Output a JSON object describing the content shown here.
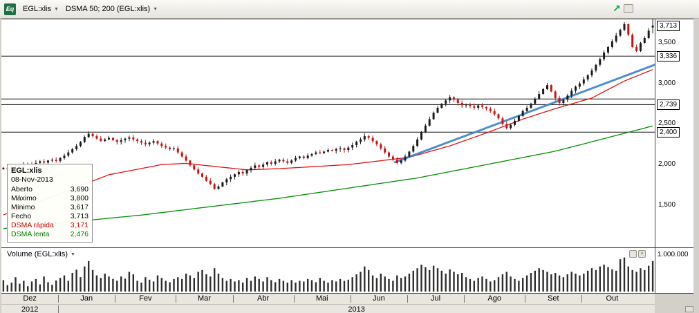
{
  "toolbar": {
    "logo_text": "Eq",
    "symbol": "EGL:xlis",
    "indicator": "DSMA 50; 200 (EGL:xlis)",
    "caret": "▼"
  },
  "chart_icons": {
    "trend_arrow": "↗"
  },
  "icons": {
    "close": "×"
  },
  "tooltip": {
    "title": "EGL:xlis",
    "date": "08-Nov-2013",
    "rows": [
      {
        "label": "Aberto",
        "value": "3,690",
        "color": "#000000"
      },
      {
        "label": "Máximo",
        "value": "3,800",
        "color": "#000000"
      },
      {
        "label": "Mínimo",
        "value": "3,617",
        "color": "#000000"
      },
      {
        "label": "Fecho",
        "value": "3,713",
        "color": "#000000"
      },
      {
        "label": "DSMA rápida",
        "value": "3,171",
        "color": "#cc0000"
      },
      {
        "label": "DSMA lenta",
        "value": "2,476",
        "color": "#007700"
      }
    ]
  },
  "volume_pane": {
    "label": "Volume (EGL:xlis)",
    "caret": "▼",
    "axis_max_label": "1.000.000"
  },
  "y_axis": {
    "ticks": [
      {
        "value": 3713,
        "label": "3,713",
        "boxed": true
      },
      {
        "value": 3500,
        "label": "3,500",
        "boxed": false
      },
      {
        "value": 3336,
        "label": "3,336",
        "boxed": true
      },
      {
        "value": 3000,
        "label": "3,000",
        "boxed": false
      },
      {
        "value": 2739,
        "label": "2,739",
        "boxed": true
      },
      {
        "value": 2500,
        "label": "2,500",
        "boxed": false
      },
      {
        "value": 2400,
        "label": "2,400",
        "boxed": true
      },
      {
        "value": 2000,
        "label": "2,000",
        "boxed": false
      },
      {
        "value": 1500,
        "label": "1,500",
        "boxed": false
      }
    ]
  },
  "x_axis": {
    "months": [
      {
        "label": "Dez",
        "start": 0
      },
      {
        "label": "Jan",
        "start": 14
      },
      {
        "label": "Fev",
        "start": 28
      },
      {
        "label": "Mar",
        "start": 43
      },
      {
        "label": "Abr",
        "start": 57
      },
      {
        "label": "Mai",
        "start": 72
      },
      {
        "label": "Jun",
        "start": 86
      },
      {
        "label": "Jul",
        "start": 100
      },
      {
        "label": "Ago",
        "start": 114
      },
      {
        "label": "Set",
        "start": 129
      },
      {
        "label": "Out",
        "start": 143
      }
    ],
    "years": [
      {
        "label": "2012",
        "start": 0,
        "end": 14
      },
      {
        "label": "2013",
        "start": 14,
        "end": 161
      }
    ]
  },
  "chart_data": {
    "type": "candlestick",
    "symbol": "EGL:xlis",
    "price_display": "values shown in thousandths with comma (3,713 = 3.713)",
    "price_range": [
      980,
      3790
    ],
    "closes": [
      1960,
      1950,
      1975,
      1990,
      1970,
      2000,
      2010,
      1995,
      2020,
      2040,
      2025,
      2050,
      2060,
      2045,
      2080,
      2110,
      2150,
      2190,
      2230,
      2280,
      2340,
      2380,
      2350,
      2320,
      2290,
      2310,
      2330,
      2300,
      2280,
      2300,
      2320,
      2335,
      2310,
      2290,
      2270,
      2250,
      2270,
      2290,
      2260,
      2230,
      2210,
      2190,
      2200,
      2150,
      2100,
      2050,
      1990,
      1940,
      1890,
      1850,
      1800,
      1760,
      1700,
      1730,
      1780,
      1820,
      1850,
      1880,
      1910,
      1890,
      1930,
      1960,
      1990,
      1970,
      2000,
      2030,
      2010,
      2040,
      2060,
      2040,
      2020,
      2050,
      2080,
      2100,
      2080,
      2110,
      2130,
      2150,
      2140,
      2160,
      2180,
      2170,
      2190,
      2200,
      2180,
      2210,
      2240,
      2280,
      2310,
      2350,
      2330,
      2290,
      2250,
      2200,
      2150,
      2100,
      2060,
      2020,
      2050,
      2100,
      2160,
      2230,
      2310,
      2400,
      2480,
      2560,
      2640,
      2700,
      2750,
      2790,
      2830,
      2800,
      2760,
      2730,
      2740,
      2720,
      2700,
      2730,
      2710,
      2690,
      2660,
      2620,
      2570,
      2500,
      2450,
      2490,
      2540,
      2600,
      2660,
      2700,
      2750,
      2810,
      2870,
      2930,
      2980,
      2900,
      2820,
      2760,
      2800,
      2850,
      2910,
      2960,
      3000,
      3050,
      3100,
      3160,
      3230,
      3300,
      3380,
      3450,
      3520,
      3590,
      3660,
      3730,
      3600,
      3450,
      3400,
      3500,
      3560,
      3650,
      3713
    ],
    "last_candle": {
      "open": 3690,
      "high": 3800,
      "low": 3617,
      "close": 3713
    },
    "volumes_thousands": [
      320,
      180,
      250,
      400,
      220,
      300,
      150,
      280,
      350,
      200,
      420,
      260,
      190,
      310,
      380,
      450,
      300,
      520,
      610,
      400,
      700,
      850,
      600,
      450,
      380,
      500,
      420,
      350,
      300,
      420,
      360,
      550,
      480,
      300,
      250,
      400,
      330,
      280,
      450,
      380,
      300,
      260,
      350,
      400,
      350,
      500,
      450,
      380,
      550,
      600,
      480,
      420,
      650,
      500,
      380,
      300,
      350,
      280,
      320,
      250,
      380,
      300,
      420,
      350,
      280,
      400,
      320,
      260,
      350,
      300,
      250,
      320,
      250,
      300,
      280,
      350,
      320,
      260,
      380,
      300,
      250,
      320,
      280,
      350,
      300,
      330,
      400,
      480,
      550,
      700,
      600,
      450,
      380,
      500,
      420,
      350,
      300,
      450,
      380,
      420,
      500,
      580,
      650,
      750,
      680,
      600,
      720,
      650,
      580,
      500,
      620,
      550,
      480,
      520,
      400,
      350,
      300,
      380,
      420,
      350,
      280,
      320,
      400,
      480,
      550,
      420,
      350,
      300,
      380,
      450,
      520,
      580,
      650,
      600,
      550,
      480,
      520,
      450,
      400,
      480,
      550,
      500,
      450,
      500,
      580,
      650,
      600,
      700,
      750,
      680,
      620,
      580,
      900,
      950,
      700,
      600,
      550,
      650,
      600,
      720,
      850
    ],
    "volume_axis_max": 1000000,
    "level_lines": [
      3336,
      2808,
      2739,
      2400
    ],
    "sma_fast": {
      "name": "DSMA rápida (50)",
      "color": "#e01010",
      "points": [
        [
          0,
          1380
        ],
        [
          17,
          1700
        ],
        [
          26,
          1875
        ],
        [
          39,
          2000
        ],
        [
          45,
          2015
        ],
        [
          60,
          1935
        ],
        [
          68,
          1950
        ],
        [
          85,
          2000
        ],
        [
          100,
          2090
        ],
        [
          110,
          2230
        ],
        [
          119,
          2390
        ],
        [
          128,
          2560
        ],
        [
          136,
          2690
        ],
        [
          145,
          2820
        ],
        [
          153,
          3030
        ],
        [
          160,
          3171
        ]
      ]
    },
    "sma_slow": {
      "name": "DSMA lenta (200)",
      "color": "#009000",
      "points": [
        [
          0,
          1212
        ],
        [
          34,
          1378
        ],
        [
          68,
          1585
        ],
        [
          102,
          1835
        ],
        [
          136,
          2165
        ],
        [
          160,
          2476
        ]
      ]
    },
    "trendline": {
      "color": "#3c85cc",
      "from": [
        97,
        2030
      ],
      "to": [
        161,
        3230
      ]
    }
  }
}
